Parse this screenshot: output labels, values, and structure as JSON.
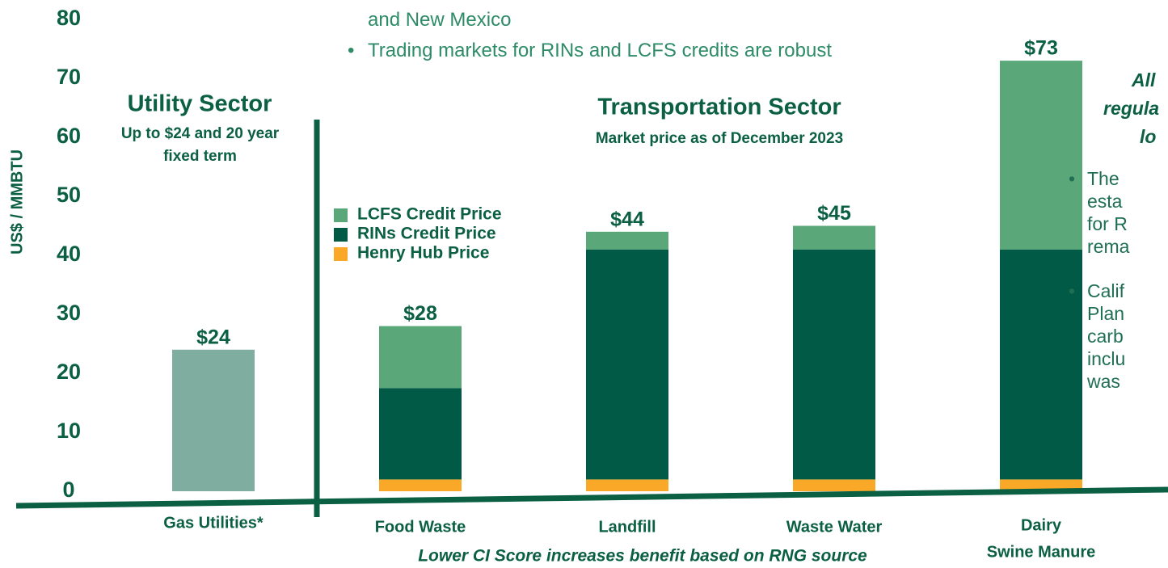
{
  "chart_data": {
    "type": "stacked_bar",
    "y_label": "US$ / MMBTU",
    "ylim": [
      0,
      80
    ],
    "yticks": [
      0,
      10,
      20,
      30,
      40,
      50,
      60,
      70,
      80
    ],
    "utility": {
      "title": "Utility Sector",
      "subtitle": "Up to $24 and 20 year fixed term",
      "category": "Gas Utilities*",
      "value": 24,
      "value_label": "$24",
      "color": "#7fada0"
    },
    "title": "Transportation Sector",
    "subtitle": "Market price as of December 2023",
    "categories": [
      "Food Waste",
      "Landfill",
      "Waste Water",
      "Dairy"
    ],
    "category_second_line": "Swine Manure",
    "series": [
      {
        "name": "Henry Hub Price",
        "color": "#f9a927",
        "values": [
          2,
          2,
          2,
          2
        ]
      },
      {
        "name": "RINs Credit Price",
        "color": "#005a46",
        "values": [
          15.5,
          39,
          39,
          39
        ]
      },
      {
        "name": "LCFS Credit Price",
        "color": "#5aa87a",
        "values": [
          10.5,
          3,
          4,
          32
        ]
      }
    ],
    "legend_order": [
      2,
      1,
      0
    ],
    "totals": [
      28,
      44,
      45,
      73
    ],
    "total_labels": [
      "$28",
      "$44",
      "$45",
      "$73"
    ],
    "footnote": "Lower CI Score increases benefit based on RNG source"
  },
  "top_bullets": [
    "and New Mexico",
    "Trading markets for RINs and LCFS credits are robust"
  ],
  "side_panel": {
    "heading": [
      "All",
      "regula",
      "lo"
    ],
    "bullet1": [
      "The",
      "esta",
      "for R",
      "rema"
    ],
    "bullet2": [
      "Calif",
      "Plan",
      "carb",
      "inclu",
      "was"
    ]
  }
}
